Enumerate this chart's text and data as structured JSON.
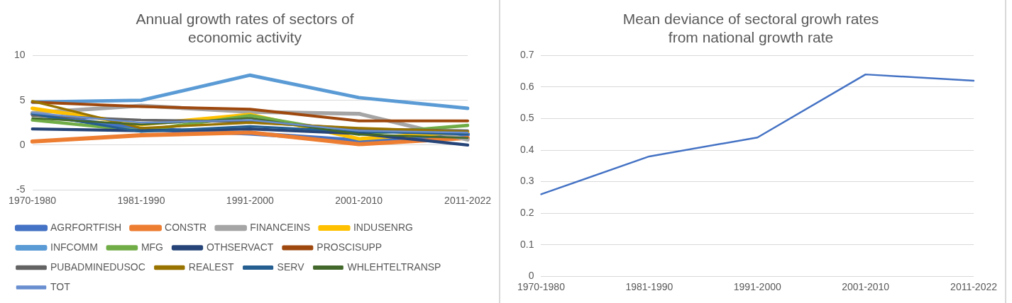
{
  "chart_data": [
    {
      "type": "line",
      "title": "Annual growth rates of sectors of economic activity",
      "categories": [
        "1970-1980",
        "1981-1990",
        "1991-2000",
        "2001-2010",
        "2011-2022"
      ],
      "series": [
        {
          "name": "AGRFORTFISH",
          "color": "#4472c4",
          "values": [
            3.5,
            1.8,
            1.3,
            0.5,
            1.2
          ]
        },
        {
          "name": "CONSTR",
          "color": "#ed7d31",
          "values": [
            0.4,
            1.1,
            1.4,
            0.1,
            0.8
          ]
        },
        {
          "name": "FINANCEINS",
          "color": "#a5a5a5",
          "values": [
            3.6,
            4.4,
            3.7,
            3.5,
            0.6
          ]
        },
        {
          "name": "INDUSENRG",
          "color": "#ffc000",
          "values": [
            4.1,
            2.3,
            3.4,
            0.7,
            1.5
          ]
        },
        {
          "name": "INFCOMM",
          "color": "#5b9bd5",
          "values": [
            4.8,
            5.0,
            7.8,
            5.3,
            4.1
          ]
        },
        {
          "name": "MFG",
          "color": "#70ad47",
          "values": [
            2.8,
            1.6,
            3.3,
            1.2,
            2.2
          ]
        },
        {
          "name": "OTHSERVACT",
          "color": "#264478",
          "values": [
            1.8,
            1.6,
            1.8,
            1.3,
            0.0
          ]
        },
        {
          "name": "PROSCISUPP",
          "color": "#9e480e",
          "values": [
            4.8,
            4.3,
            4.0,
            2.7,
            2.7
          ]
        },
        {
          "name": "PUBADMINEDUSOC",
          "color": "#636363",
          "values": [
            3.3,
            2.8,
            2.6,
            1.8,
            1.6
          ]
        },
        {
          "name": "REALEST",
          "color": "#997300",
          "values": [
            4.9,
            1.9,
            2.5,
            1.9,
            1.5
          ]
        },
        {
          "name": "SERV",
          "color": "#255e91",
          "values": [
            3.5,
            1.5,
            2.1,
            1.5,
            1.2
          ]
        },
        {
          "name": "WHLEHTELTRANSP",
          "color": "#43682b",
          "values": [
            3.0,
            2.3,
            3.0,
            1.2,
            0.8
          ]
        },
        {
          "name": "TOT",
          "color": "#698ed0",
          "values": [
            3.6,
            2.5,
            2.8,
            1.6,
            1.4
          ]
        }
      ],
      "ylim": [
        -5,
        10
      ],
      "yticks": [
        -5,
        0,
        5,
        10
      ],
      "grid": "y",
      "legend": "bottom",
      "marker": "none",
      "line_style": "solid"
    },
    {
      "type": "line",
      "title": "Mean deviance of sectoral growh rates from national growth rate",
      "categories": [
        "1970-1980",
        "1981-1990",
        "1991-2000",
        "2001-2010",
        "2011-2022"
      ],
      "series": [
        {
          "color": "#4472c4",
          "values": [
            0.26,
            0.38,
            0.44,
            0.64,
            0.62
          ]
        }
      ],
      "ylim": [
        0,
        0.7
      ],
      "yticks": [
        0,
        0.1,
        0.2,
        0.3,
        0.4,
        0.5,
        0.6,
        0.7
      ],
      "grid": "y",
      "legend": false,
      "marker": "none",
      "line_style": "solid"
    }
  ]
}
